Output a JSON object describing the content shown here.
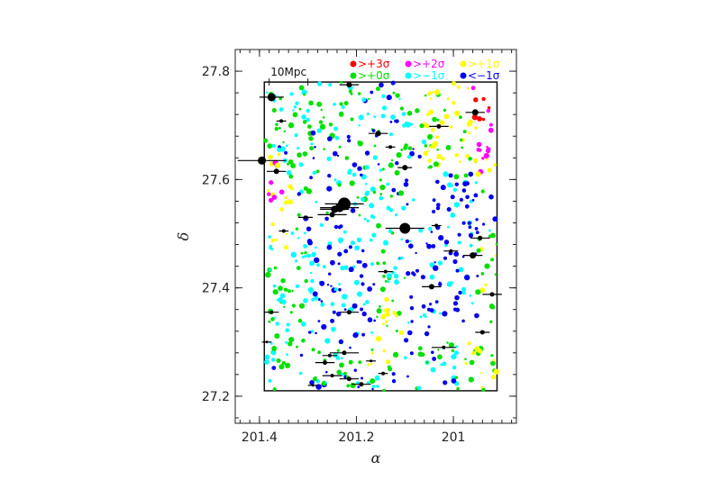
{
  "chart_data": {
    "type": "scatter",
    "xlabel": "α",
    "ylabel": "δ",
    "xlim": [
      201.45,
      200.87
    ],
    "ylim": [
      27.15,
      27.84
    ],
    "x_ticks": [
      201.4,
      201.2,
      201
    ],
    "x_tick_labels": [
      "201.4",
      "201.2",
      "201"
    ],
    "y_ticks": [
      27.2,
      27.4,
      27.6,
      27.8
    ],
    "y_tick_labels": [
      "27.2",
      "27.4",
      "27.6",
      "27.8"
    ],
    "region": {
      "ra_min": 200.91,
      "ra_max": 201.39,
      "dec_min": 27.21,
      "dec_max": 27.78
    },
    "scale_bar": {
      "label": "10Mpc",
      "ra_from": 201.38,
      "ra_to": 201.3,
      "dec": 27.77
    },
    "legend": [
      {
        "label": ">+3σ",
        "color": "#ff0000"
      },
      {
        "label": ">+2σ",
        "color": "#ff00ff"
      },
      {
        "label": ">+1σ",
        "color": "#ffff00"
      },
      {
        "label": ">+0σ",
        "color": "#00e000"
      },
      {
        "label": ">−1σ",
        "color": "#00ffff"
      },
      {
        "label": "<−1σ",
        "color": "#0000ee"
      }
    ],
    "galaxies": [
      {
        "ra": 201.375,
        "dec": 27.752,
        "size": 9,
        "err": 0.025
      },
      {
        "ra": 201.395,
        "dec": 27.635,
        "size": 9,
        "err": 0.05
      },
      {
        "ra": 201.365,
        "dec": 27.615,
        "size": 6,
        "err": 0.02
      },
      {
        "ra": 201.225,
        "dec": 27.555,
        "size": 14,
        "err": 0.04
      },
      {
        "ra": 201.235,
        "dec": 27.548,
        "size": 10,
        "err": 0.04
      },
      {
        "ra": 201.245,
        "dec": 27.545,
        "size": 8,
        "err": 0.03
      },
      {
        "ra": 201.25,
        "dec": 27.535,
        "size": 6,
        "err": 0.03
      },
      {
        "ra": 201.1,
        "dec": 27.51,
        "size": 12,
        "err": 0.04
      },
      {
        "ra": 201.215,
        "dec": 27.775,
        "size": 6,
        "err": 0.02
      },
      {
        "ra": 201.155,
        "dec": 27.685,
        "size": 6,
        "err": 0.02
      },
      {
        "ra": 201.03,
        "dec": 27.698,
        "size": 5,
        "err": 0.02
      },
      {
        "ra": 201.1,
        "dec": 27.622,
        "size": 6,
        "err": 0.015
      },
      {
        "ra": 200.955,
        "dec": 27.724,
        "size": 7,
        "err": 0.02
      },
      {
        "ra": 200.96,
        "dec": 27.46,
        "size": 7,
        "err": 0.02
      },
      {
        "ra": 200.945,
        "dec": 27.492,
        "size": 5,
        "err": 0.02
      },
      {
        "ra": 201.005,
        "dec": 27.468,
        "size": 4,
        "err": 0.015
      },
      {
        "ra": 201.045,
        "dec": 27.402,
        "size": 6,
        "err": 0.02
      },
      {
        "ra": 200.92,
        "dec": 27.388,
        "size": 5,
        "err": 0.02
      },
      {
        "ra": 201.14,
        "dec": 27.43,
        "size": 4,
        "err": 0.015
      },
      {
        "ra": 201.215,
        "dec": 27.355,
        "size": 5,
        "err": 0.02
      },
      {
        "ra": 201.375,
        "dec": 27.355,
        "size": 4,
        "err": 0.015
      },
      {
        "ra": 201.35,
        "dec": 27.505,
        "size": 4,
        "err": 0.01
      },
      {
        "ra": 201.305,
        "dec": 27.53,
        "size": 4,
        "err": 0.015
      },
      {
        "ra": 200.94,
        "dec": 27.318,
        "size": 5,
        "err": 0.015
      },
      {
        "ra": 201.02,
        "dec": 27.29,
        "size": 4,
        "err": 0.025
      },
      {
        "ra": 201.225,
        "dec": 27.28,
        "size": 5,
        "err": 0.03
      },
      {
        "ra": 201.265,
        "dec": 27.262,
        "size": 5,
        "err": 0.02
      },
      {
        "ra": 201.25,
        "dec": 27.238,
        "size": 4,
        "err": 0.02
      },
      {
        "ra": 201.215,
        "dec": 27.232,
        "size": 5,
        "err": 0.02
      },
      {
        "ra": 201.19,
        "dec": 27.222,
        "size": 5,
        "err": 0.02
      },
      {
        "ra": 201.145,
        "dec": 27.242,
        "size": 4,
        "err": 0.01
      },
      {
        "ra": 201.29,
        "dec": 27.22,
        "size": 3,
        "err": 0.01
      },
      {
        "ra": 201.255,
        "dec": 27.275,
        "size": 4,
        "err": 0.015
      },
      {
        "ra": 201.17,
        "dec": 27.265,
        "size": 3,
        "err": 0.01
      },
      {
        "ra": 201.385,
        "dec": 27.3,
        "size": 3,
        "err": 0.01
      },
      {
        "ra": 201.355,
        "dec": 27.708,
        "size": 4,
        "err": 0.01
      },
      {
        "ra": 201.13,
        "dec": 27.66,
        "size": 4,
        "err": 0.01
      },
      {
        "ra": 201.035,
        "dec": 27.515,
        "size": 4,
        "err": 0.01
      }
    ]
  }
}
